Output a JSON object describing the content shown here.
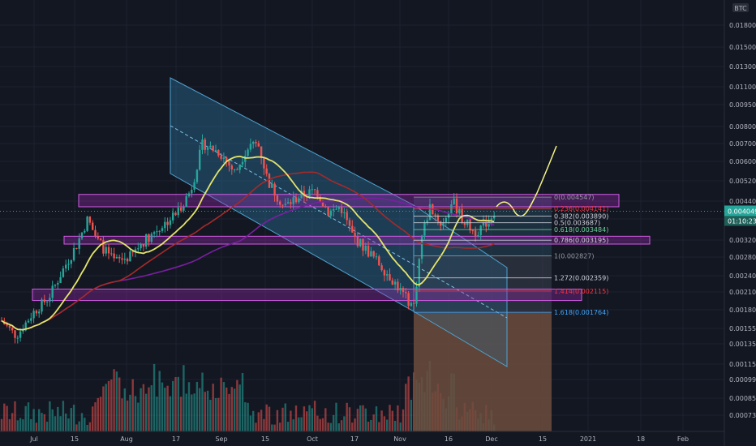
{
  "chart_data": {
    "type": "candlestick",
    "instrument_tag": "BTC",
    "currency_top_label": "BTC",
    "current_price": "0.004049",
    "countdown": "01:10:23",
    "y_ticks": [
      "0.018000",
      "0.015000",
      "0.013000",
      "0.011000",
      "0.009500",
      "0.008000",
      "0.007000",
      "0.006000",
      "0.005200",
      "0.004400",
      "0.003800",
      "0.003200",
      "0.002800",
      "0.002400",
      "0.002100",
      "0.001800",
      "0.001550",
      "0.001350",
      "0.001150",
      "0.000990",
      "0.000850",
      "0.000730"
    ],
    "x_ticks": [
      "Jul",
      "15",
      "Aug",
      "17",
      "Sep",
      "15",
      "Oct",
      "17",
      "Nov",
      "16",
      "Dec",
      "15",
      "2021",
      "18",
      "Feb"
    ],
    "fib_levels": [
      {
        "label": "0(0.004547)",
        "value": 0.004547,
        "color": "#9598a1"
      },
      {
        "label": "0.236(0.004141)",
        "value": 0.004141,
        "color": "#f23645"
      },
      {
        "label": "0.382(0.003890)",
        "value": 0.00389,
        "color": "#d1d4dc"
      },
      {
        "label": "0.5(0.003687)",
        "value": 0.003687,
        "color": "#d1d4dc"
      },
      {
        "label": "0.618(0.003484)",
        "value": 0.003484,
        "color": "#6ad29a"
      },
      {
        "label": "0.786(0.003195)",
        "value": 0.003195,
        "color": "#d1d4dc"
      },
      {
        "label": "1(0.002827)",
        "value": 0.002827,
        "color": "#9598a1"
      },
      {
        "label": "1.272(0.002359)",
        "value": 0.002359,
        "color": "#d1d4dc"
      },
      {
        "label": "1.414(0.002115)",
        "value": 0.002115,
        "color": "#f23645"
      },
      {
        "label": "1.618(0.001764)",
        "value": 0.001764,
        "color": "#3fa7ff"
      }
    ],
    "support_zones": [
      {
        "name": "upper",
        "from": 0.0042,
        "to": 0.00465
      },
      {
        "name": "middle",
        "from": 0.0031,
        "to": 0.0033
      },
      {
        "name": "lower",
        "from": 0.00195,
        "to": 0.00215
      }
    ],
    "colors": {
      "background": "#131722",
      "up": "#26a69a",
      "down": "#ef5350",
      "channel": "#2b6c94",
      "zone": "#9c27b0",
      "ma_fast": "#e5e56b",
      "ma_mid": "#a52a2a",
      "ma_slow": "#7b1fa2",
      "projection": "#f5f584"
    }
  }
}
